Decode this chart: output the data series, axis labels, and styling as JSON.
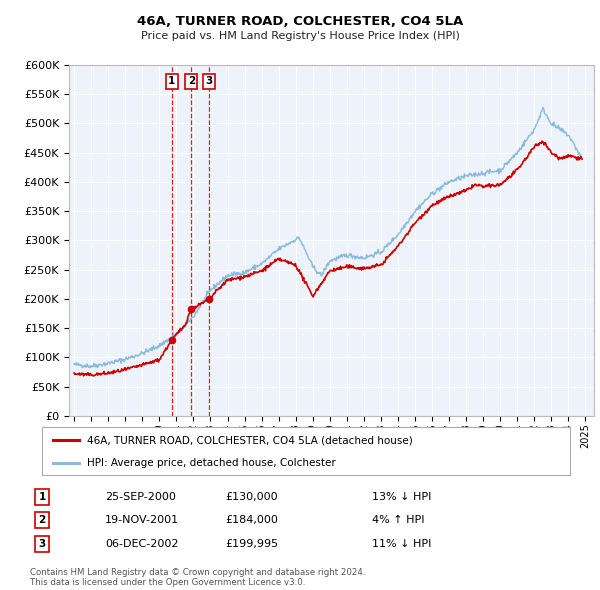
{
  "title": "46A, TURNER ROAD, COLCHESTER, CO4 5LA",
  "subtitle": "Price paid vs. HM Land Registry's House Price Index (HPI)",
  "legend_label_red": "46A, TURNER ROAD, COLCHESTER, CO4 5LA (detached house)",
  "legend_label_blue": "HPI: Average price, detached house, Colchester",
  "red_color": "#cc0000",
  "blue_color": "#88bbdd",
  "bg_color": "#eef2fa",
  "grid_color": "#ffffff",
  "transactions": [
    {
      "num": 1,
      "date": "25-SEP-2000",
      "price": 130000,
      "pct": "13%",
      "dir": "↓",
      "x_year": 2000.73
    },
    {
      "num": 2,
      "date": "19-NOV-2001",
      "price": 184000,
      "pct": "4%",
      "dir": "↑",
      "x_year": 2001.88
    },
    {
      "num": 3,
      "date": "06-DEC-2002",
      "price": 199995,
      "pct": "11%",
      "dir": "↓",
      "x_year": 2002.93
    }
  ],
  "vline_color": "#cc0000",
  "marker_color": "#cc0000",
  "footnote": "Contains HM Land Registry data © Crown copyright and database right 2024.\nThis data is licensed under the Open Government Licence v3.0.",
  "ylim": [
    0,
    600000
  ],
  "xlim_start": 1994.7,
  "xlim_end": 2025.5,
  "hpi_waypoints": [
    [
      1995.0,
      88000
    ],
    [
      1996.0,
      85000
    ],
    [
      1997.0,
      90000
    ],
    [
      1998.0,
      97000
    ],
    [
      1999.0,
      107000
    ],
    [
      2000.0,
      120000
    ],
    [
      2001.0,
      140000
    ],
    [
      2002.0,
      170000
    ],
    [
      2003.0,
      215000
    ],
    [
      2004.0,
      240000
    ],
    [
      2005.0,
      245000
    ],
    [
      2006.0,
      260000
    ],
    [
      2007.0,
      285000
    ],
    [
      2008.2,
      305000
    ],
    [
      2009.0,
      255000
    ],
    [
      2009.5,
      240000
    ],
    [
      2010.0,
      265000
    ],
    [
      2011.0,
      275000
    ],
    [
      2012.0,
      270000
    ],
    [
      2013.0,
      280000
    ],
    [
      2014.0,
      310000
    ],
    [
      2015.0,
      350000
    ],
    [
      2016.0,
      380000
    ],
    [
      2017.0,
      400000
    ],
    [
      2018.0,
      410000
    ],
    [
      2019.0,
      415000
    ],
    [
      2020.0,
      420000
    ],
    [
      2021.0,
      450000
    ],
    [
      2022.0,
      490000
    ],
    [
      2022.5,
      525000
    ],
    [
      2023.0,
      500000
    ],
    [
      2024.0,
      480000
    ],
    [
      2024.8,
      440000
    ]
  ],
  "red_waypoints": [
    [
      1995.0,
      72000
    ],
    [
      1996.0,
      70000
    ],
    [
      1997.0,
      73000
    ],
    [
      1998.0,
      79000
    ],
    [
      1999.0,
      87000
    ],
    [
      2000.0,
      96000
    ],
    [
      2000.73,
      130000
    ],
    [
      2001.5,
      155000
    ],
    [
      2001.88,
      184000
    ],
    [
      2002.5,
      192000
    ],
    [
      2002.93,
      199995
    ],
    [
      2003.5,
      218000
    ],
    [
      2004.0,
      232000
    ],
    [
      2005.0,
      238000
    ],
    [
      2006.0,
      248000
    ],
    [
      2007.0,
      268000
    ],
    [
      2008.0,
      258000
    ],
    [
      2009.0,
      205000
    ],
    [
      2010.0,
      248000
    ],
    [
      2011.0,
      255000
    ],
    [
      2012.0,
      252000
    ],
    [
      2013.0,
      258000
    ],
    [
      2014.0,
      290000
    ],
    [
      2015.0,
      330000
    ],
    [
      2016.0,
      360000
    ],
    [
      2017.0,
      375000
    ],
    [
      2018.0,
      385000
    ],
    [
      2018.5,
      395000
    ],
    [
      2019.0,
      392000
    ],
    [
      2020.0,
      395000
    ],
    [
      2021.0,
      420000
    ],
    [
      2022.0,
      460000
    ],
    [
      2022.5,
      470000
    ],
    [
      2023.0,
      450000
    ],
    [
      2023.5,
      440000
    ],
    [
      2024.0,
      445000
    ],
    [
      2024.8,
      440000
    ]
  ]
}
